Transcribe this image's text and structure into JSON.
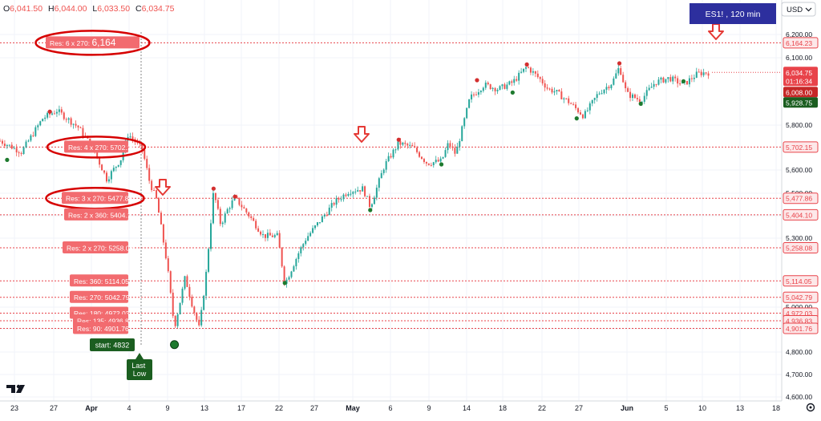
{
  "ohlc": {
    "o": "O",
    "o_val": "6,041.50",
    "h": "H",
    "h_val": "6,044.00",
    "l": "L",
    "l_val": "6,033.50",
    "c": "C",
    "c_val": "6,034.75"
  },
  "currency": "USD",
  "symbol_badge": "ES1! , 120 min",
  "last_low_label": "Last Low",
  "start_label": "start: 4832",
  "colors": {
    "level": "#e8434a",
    "up": "#26a69a",
    "down": "#ef5350",
    "badge": "#2d2f9e",
    "current": "#e8434a",
    "marker_low": "#1e7a2e",
    "marker_high": "#d32f2f"
  },
  "chart_data": {
    "type": "candlestick",
    "ylim": [
      4600,
      6300
    ],
    "y_ticks": [
      "4,600.00",
      "4,700.00",
      "4,800.00",
      "4,900.00",
      "5,000.00",
      "5,300.00",
      "5,400.00",
      "5,500.00",
      "5,600.00",
      "5,800.00",
      "6,100.00",
      "6,200.00"
    ],
    "y_tick_values": [
      4600,
      4700,
      4800,
      4900,
      5000,
      5300,
      5400,
      5500,
      5600,
      5800,
      6100,
      6200
    ],
    "x_ticks": [
      "23",
      "27",
      "Apr",
      "4",
      "9",
      "13",
      "17",
      "22",
      "27",
      "May",
      "6",
      "9",
      "14",
      "18",
      "22",
      "27",
      "Jun",
      "5",
      "10",
      "13",
      "18"
    ],
    "x_tick_bold": [
      false,
      false,
      true,
      false,
      false,
      false,
      false,
      false,
      false,
      true,
      false,
      false,
      false,
      false,
      false,
      false,
      true,
      false,
      false,
      false,
      false
    ],
    "levels": [
      {
        "label": "Res: 6 x 270:",
        "value_text": "6,164",
        "price": 6164.23,
        "price_text": "6,164.23",
        "circled": true
      },
      {
        "label": "Res: 4 x 270:",
        "value_text": "5702.15",
        "price": 5702.15,
        "price_text": "5,702.15",
        "circled": true
      },
      {
        "label": "Res: 3 x 270:",
        "value_text": "5477.86",
        "price": 5477.86,
        "price_text": "5,477.86",
        "circled": true
      },
      {
        "label": "Res: 2 x 360:",
        "value_text": "5404.1",
        "price": 5404.1,
        "price_text": "5,404.10",
        "circled": false
      },
      {
        "label": "Res: 2 x 270:",
        "value_text": "5258.08",
        "price": 5258.08,
        "price_text": "5,258.08",
        "circled": false
      },
      {
        "label": "Res: 360:",
        "value_text": "5114.05",
        "price": 5114.05,
        "price_text": "5,114.05",
        "circled": false
      },
      {
        "label": "Res: 270:",
        "value_text": "5042.79",
        "price": 5042.79,
        "price_text": "5,042.79",
        "circled": false
      },
      {
        "label": "Res: 180:",
        "value_text": "4972.03",
        "price": 4972.03,
        "price_text": "4,972.03",
        "circled": false
      },
      {
        "label": "Res: 135:",
        "value_text": "4936.83",
        "price": 4936.83,
        "price_text": "4,936.83",
        "circled": false
      },
      {
        "label": "Res: 90:",
        "value_text": "4901.76",
        "price": 4901.76,
        "price_text": "4,901.76",
        "circled": false
      }
    ],
    "current_price": {
      "value": 6034.75,
      "text": "6,034.75",
      "countdown": "01:16:34"
    },
    "extra_tags": [
      {
        "value": 6008.0,
        "text": "6,008.00",
        "bg": "#c62828"
      },
      {
        "value": 5928.75,
        "text": "5,928.75",
        "bg": "#1b5e20"
      }
    ],
    "path": [
      [
        0,
        5730
      ],
      [
        3,
        5680
      ],
      [
        6,
        5830
      ],
      [
        8,
        5865
      ],
      [
        11,
        5790
      ],
      [
        13,
        5700
      ],
      [
        15,
        5560
      ],
      [
        17,
        5650
      ],
      [
        18,
        5760
      ],
      [
        20,
        5690
      ],
      [
        21,
        5550
      ],
      [
        22,
        5470
      ],
      [
        23.5,
        5180
      ],
      [
        24.5,
        4905
      ],
      [
        26,
        5130
      ],
      [
        27,
        5010
      ],
      [
        28,
        4900
      ],
      [
        29,
        5160
      ],
      [
        30,
        5510
      ],
      [
        31,
        5360
      ],
      [
        32,
        5430
      ],
      [
        33,
        5480
      ],
      [
        35,
        5400
      ],
      [
        37,
        5310
      ],
      [
        39,
        5310
      ],
      [
        40,
        5100
      ],
      [
        42,
        5240
      ],
      [
        43,
        5300
      ],
      [
        45,
        5380
      ],
      [
        47,
        5460
      ],
      [
        49,
        5510
      ],
      [
        51,
        5520
      ],
      [
        52,
        5440
      ],
      [
        54,
        5620
      ],
      [
        56,
        5720
      ],
      [
        58,
        5700
      ],
      [
        60,
        5630
      ],
      [
        62,
        5640
      ],
      [
        63,
        5720
      ],
      [
        64,
        5670
      ],
      [
        66,
        5920
      ],
      [
        68,
        5980
      ],
      [
        70,
        5960
      ],
      [
        72,
        5990
      ],
      [
        74,
        6060
      ],
      [
        76,
        6000
      ],
      [
        77,
        5960
      ],
      [
        78,
        5950
      ],
      [
        80,
        5900
      ],
      [
        82,
        5840
      ],
      [
        84,
        5940
      ],
      [
        86,
        5990
      ],
      [
        87,
        6060
      ],
      [
        88,
        5940
      ],
      [
        90,
        5910
      ],
      [
        92,
        5990
      ],
      [
        94,
        6010
      ],
      [
        96,
        5980
      ],
      [
        98,
        6030
      ],
      [
        99,
        6034
      ]
    ],
    "markers": [
      {
        "t": 1,
        "price": 5645,
        "kind": "low"
      },
      {
        "t": 7,
        "price": 5860,
        "kind": "high"
      },
      {
        "t": 24.5,
        "price": 4832,
        "kind": "low"
      },
      {
        "t": 30,
        "price": 5520,
        "kind": "high"
      },
      {
        "t": 33,
        "price": 5485,
        "kind": "high"
      },
      {
        "t": 40,
        "price": 5105,
        "kind": "low"
      },
      {
        "t": 52,
        "price": 5425,
        "kind": "low"
      },
      {
        "t": 56,
        "price": 5735,
        "kind": "high"
      },
      {
        "t": 62,
        "price": 5625,
        "kind": "low"
      },
      {
        "t": 67,
        "price": 6000,
        "kind": "high"
      },
      {
        "t": 72,
        "price": 5945,
        "kind": "low"
      },
      {
        "t": 74,
        "price": 6070,
        "kind": "high"
      },
      {
        "t": 81,
        "price": 5830,
        "kind": "low"
      },
      {
        "t": 87,
        "price": 6075,
        "kind": "high"
      },
      {
        "t": 90,
        "price": 5895,
        "kind": "low"
      },
      {
        "t": 96,
        "price": 5995,
        "kind": "low"
      }
    ],
    "arrows": [
      {
        "t": 95,
        "price": 6215
      },
      {
        "t": 53,
        "price": 5800
      },
      {
        "t": 27,
        "price": 5540
      }
    ]
  }
}
